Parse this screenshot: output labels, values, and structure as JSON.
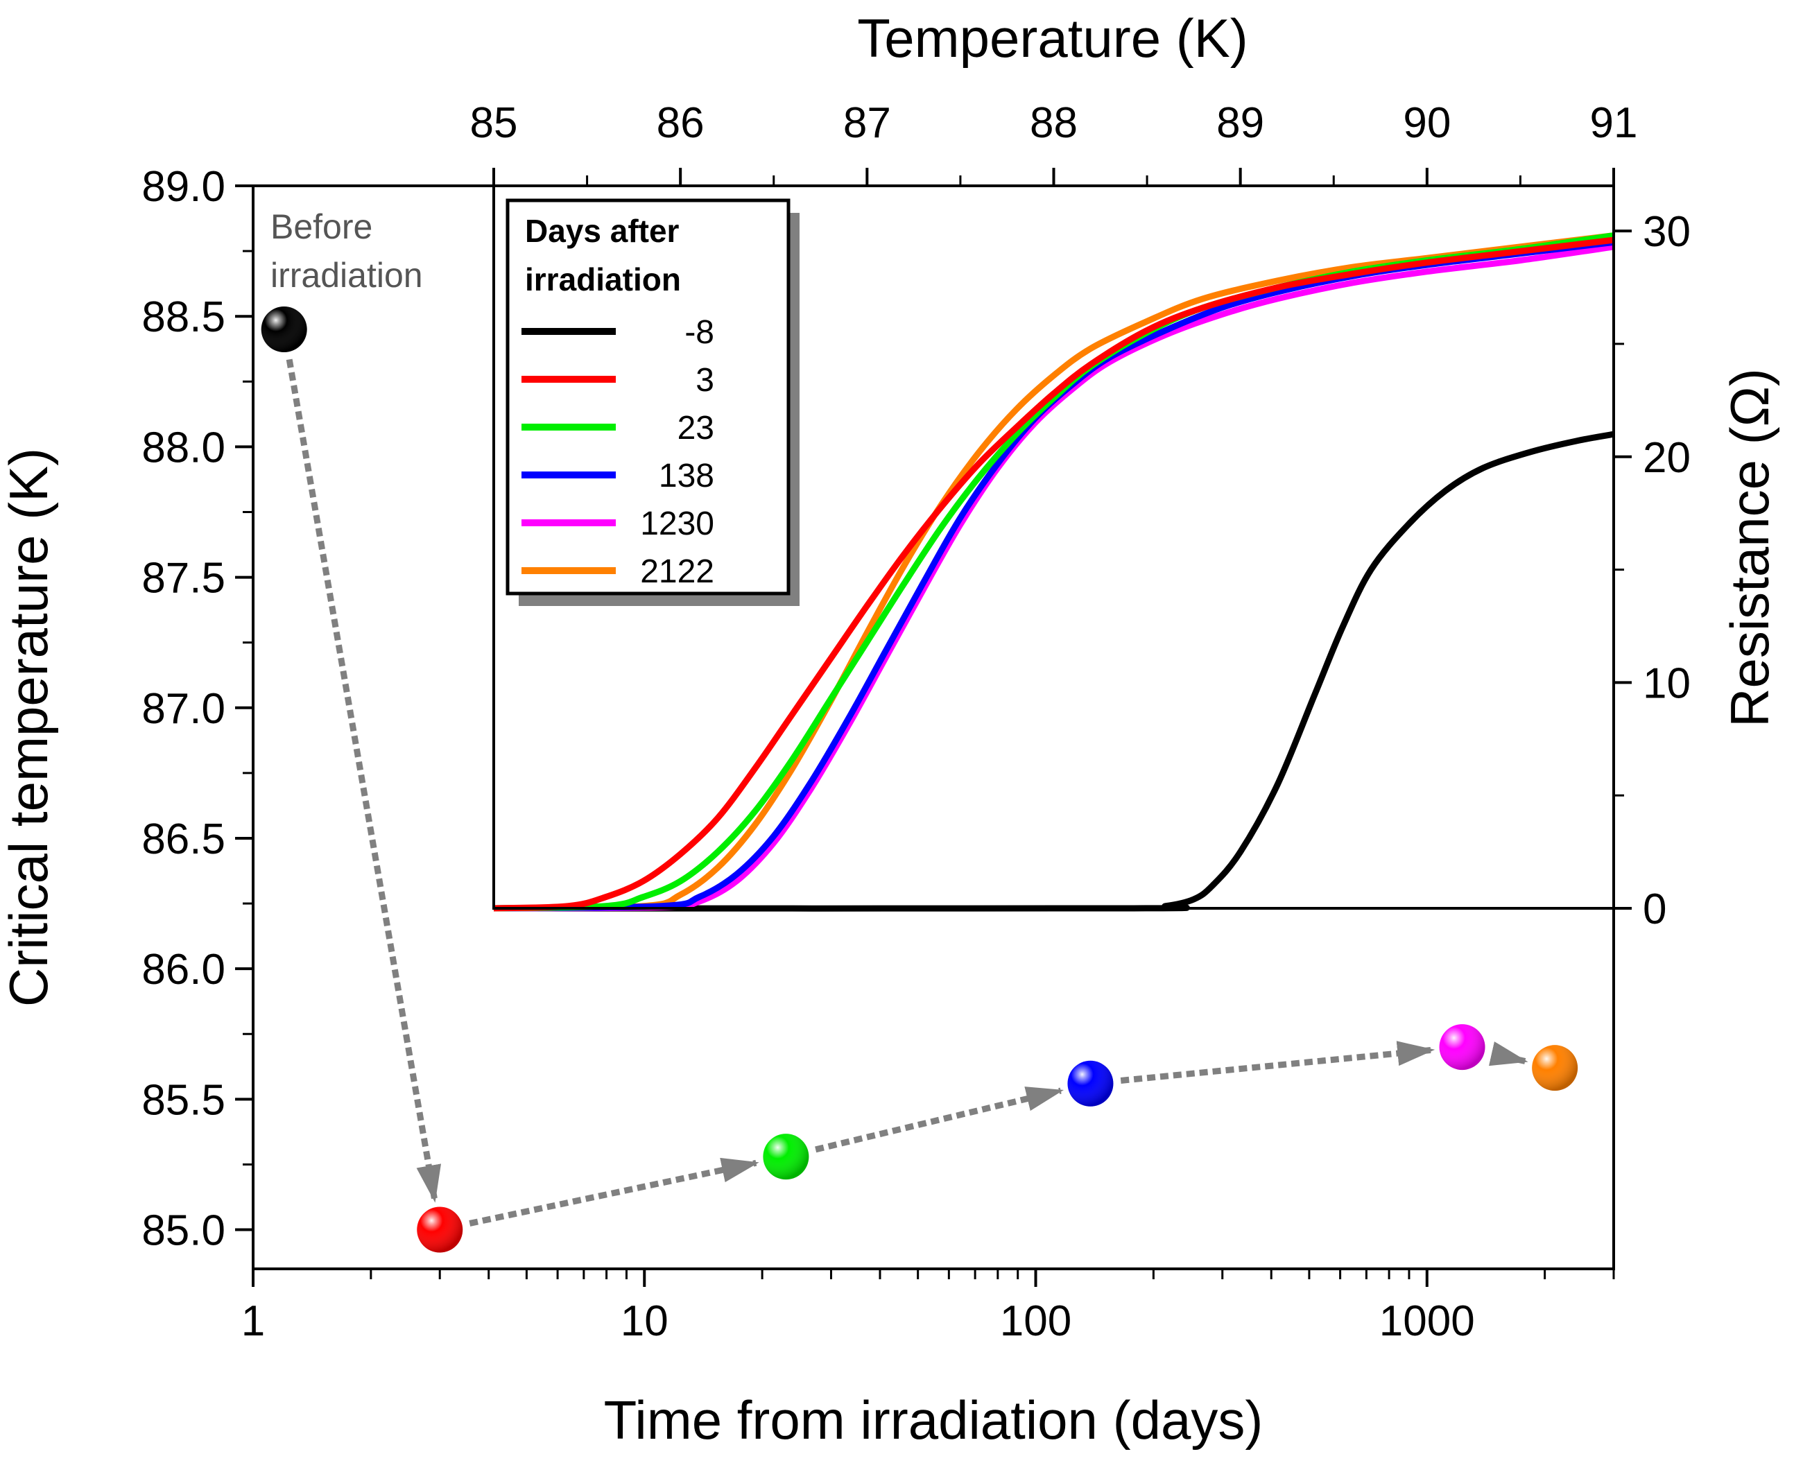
{
  "chart_data": [
    {
      "type": "scatter",
      "x_scale": "log",
      "xlabel": "Time from irradiation (days)",
      "ylabel": "Critical temperature (K)",
      "xlim": [
        1,
        3000
      ],
      "ylim": [
        84.85,
        89.0
      ],
      "x_ticks": [
        1,
        10,
        100,
        1000
      ],
      "x_tick_labels": [
        "1",
        "10",
        "100",
        "1000"
      ],
      "y_ticks": [
        85.0,
        85.5,
        86.0,
        86.5,
        87.0,
        87.5,
        88.0,
        88.5,
        89.0
      ],
      "y_tick_labels": [
        "85.0",
        "85.5",
        "86.0",
        "86.5",
        "87.0",
        "87.5",
        "88.0",
        "88.5",
        "89.0"
      ],
      "annotation": {
        "line1": "Before",
        "line2": "irradiation"
      },
      "points": [
        {
          "days": 1.2,
          "tc": 88.45,
          "color": "#000000"
        },
        {
          "days": 3,
          "tc": 85.0,
          "color": "#ff0000"
        },
        {
          "days": 23,
          "tc": 85.28,
          "color": "#00ee00"
        },
        {
          "days": 138,
          "tc": 85.56,
          "color": "#0000ff"
        },
        {
          "days": 1230,
          "tc": 85.7,
          "color": "#ff00ff"
        },
        {
          "days": 2122,
          "tc": 85.62,
          "color": "#ff8000"
        }
      ]
    },
    {
      "type": "line",
      "title": "Temperature (K)",
      "xlabel": "Temperature (K)",
      "ylabel": "Resistance (Ω)",
      "xlim": [
        85,
        91
      ],
      "ylim": [
        0,
        32
      ],
      "x_ticks": [
        85,
        86,
        87,
        88,
        89,
        90,
        91
      ],
      "x_tick_labels": [
        "85",
        "86",
        "87",
        "88",
        "89",
        "90",
        "91"
      ],
      "y_ticks": [
        0,
        10,
        20,
        30
      ],
      "y_tick_labels": [
        "0",
        "10",
        "20",
        "30"
      ],
      "legend": {
        "title_line1": "Days after",
        "title_line2": "irradiation",
        "position": "top-left"
      },
      "series": [
        {
          "name": "-8",
          "color": "#000000",
          "x": [
            85.0,
            88.4,
            88.6,
            88.75,
            88.85,
            89.0,
            89.2,
            89.4,
            89.55,
            89.7,
            89.9,
            90.1,
            90.3,
            90.55,
            90.8,
            91.0
          ],
          "y": [
            0,
            0,
            0.1,
            0.4,
            1.0,
            2.5,
            5.5,
            9.5,
            12.5,
            15.0,
            17.0,
            18.5,
            19.5,
            20.2,
            20.7,
            21.0
          ]
        },
        {
          "name": "3",
          "color": "#ff0000",
          "x": [
            85.0,
            85.4,
            85.6,
            85.8,
            86.0,
            86.2,
            86.4,
            86.6,
            86.8,
            87.0,
            87.2,
            87.4,
            87.6,
            87.8,
            88.0,
            88.2,
            88.5,
            88.8,
            89.2,
            89.6,
            90.0,
            90.5,
            91.0
          ],
          "y": [
            0,
            0.1,
            0.5,
            1.2,
            2.4,
            4.0,
            6.2,
            8.6,
            11.0,
            13.4,
            15.7,
            17.8,
            19.7,
            21.3,
            22.8,
            24.1,
            25.6,
            26.6,
            27.5,
            28.1,
            28.6,
            29.1,
            29.6
          ]
        },
        {
          "name": "23",
          "color": "#00ee00",
          "x": [
            85.0,
            85.6,
            85.8,
            86.0,
            86.2,
            86.4,
            86.6,
            86.8,
            87.0,
            87.2,
            87.4,
            87.6,
            87.8,
            88.0,
            88.2,
            88.5,
            88.8,
            89.2,
            89.6,
            90.0,
            90.5,
            91.0
          ],
          "y": [
            0,
            0.1,
            0.5,
            1.2,
            2.5,
            4.3,
            6.6,
            9.2,
            11.8,
            14.4,
            16.9,
            19.1,
            21.0,
            22.6,
            24.0,
            25.5,
            26.6,
            27.5,
            28.2,
            28.7,
            29.2,
            29.8
          ]
        },
        {
          "name": "138",
          "color": "#0000ff",
          "x": [
            85.0,
            85.9,
            86.1,
            86.3,
            86.5,
            86.7,
            86.9,
            87.1,
            87.3,
            87.5,
            87.7,
            87.9,
            88.1,
            88.3,
            88.6,
            88.9,
            89.2,
            89.6,
            90.0,
            90.5,
            91.0
          ],
          "y": [
            0,
            0.1,
            0.5,
            1.5,
            3.2,
            5.6,
            8.4,
            11.4,
            14.4,
            17.3,
            19.7,
            21.7,
            23.2,
            24.4,
            25.6,
            26.6,
            27.3,
            28.0,
            28.5,
            29.0,
            29.5
          ]
        },
        {
          "name": "1230",
          "color": "#ff00ff",
          "x": [
            85.0,
            85.9,
            86.1,
            86.3,
            86.5,
            86.7,
            86.9,
            87.1,
            87.3,
            87.5,
            87.7,
            87.9,
            88.1,
            88.3,
            88.6,
            88.9,
            89.2,
            89.6,
            90.0,
            90.5,
            91.0
          ],
          "y": [
            0,
            0.05,
            0.3,
            1.2,
            2.9,
            5.3,
            8.1,
            11.1,
            14.1,
            17.0,
            19.5,
            21.5,
            23.0,
            24.2,
            25.4,
            26.3,
            27.0,
            27.7,
            28.2,
            28.7,
            29.3
          ]
        },
        {
          "name": "2122",
          "color": "#ff8000",
          "x": [
            85.0,
            85.8,
            86.0,
            86.2,
            86.4,
            86.6,
            86.8,
            87.0,
            87.2,
            87.4,
            87.6,
            87.8,
            88.0,
            88.2,
            88.5,
            88.8,
            89.2,
            89.6,
            90.0,
            90.5,
            91.0
          ],
          "y": [
            0,
            0.1,
            0.6,
            1.8,
            3.7,
            6.2,
            9.1,
            12.2,
            15.2,
            17.9,
            20.2,
            22.1,
            23.6,
            24.8,
            26.0,
            27.0,
            27.8,
            28.4,
            28.8,
            29.3,
            29.8
          ]
        }
      ]
    }
  ]
}
